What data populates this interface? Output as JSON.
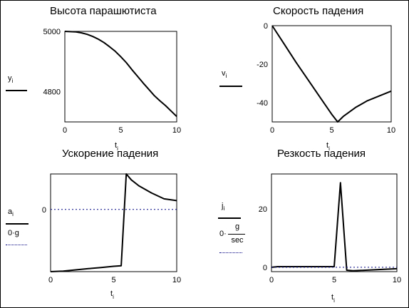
{
  "chart_data": [
    {
      "type": "line",
      "title": "Высота парашютиста",
      "xlabel": "t",
      "xlabel_sub": "i",
      "legend": [
        {
          "label": "y",
          "sub": "i",
          "style": "solid"
        }
      ],
      "xlim": [
        0,
        10
      ],
      "ylim": [
        4700,
        5000
      ],
      "xticks": [
        {
          "v": 0,
          "label": "0"
        },
        {
          "v": 5,
          "label": "5"
        },
        {
          "v": 10,
          "label": "10"
        }
      ],
      "yticks": [
        {
          "v": 5000,
          "label": "5000"
        },
        {
          "v": 4800,
          "label": "4800"
        }
      ],
      "series": [
        {
          "x": [
            0,
            1,
            1.5,
            2,
            2.5,
            3,
            3.5,
            4,
            4.5,
            5,
            5.5,
            6,
            6.5,
            7,
            7.5,
            8,
            8.5,
            9,
            9.5,
            10
          ],
          "y": [
            5000,
            4998,
            4995,
            4990,
            4983,
            4974,
            4963,
            4949,
            4934,
            4916,
            4896,
            4873,
            4851,
            4829,
            4808,
            4787,
            4770,
            4754,
            4736,
            4718
          ]
        }
      ]
    },
    {
      "type": "line",
      "title": "Скорость падения",
      "xlabel": "t",
      "xlabel_sub": "i",
      "legend": [
        {
          "label": "v",
          "sub": "i",
          "style": "solid"
        }
      ],
      "xlim": [
        0,
        10
      ],
      "ylim": [
        -50,
        0
      ],
      "xticks": [
        {
          "v": 0,
          "label": "0"
        },
        {
          "v": 5,
          "label": "5"
        },
        {
          "v": 10,
          "label": "10"
        }
      ],
      "yticks": [
        {
          "v": 0,
          "label": "0"
        },
        {
          "v": -20,
          "label": "-20"
        },
        {
          "v": -40,
          "label": "-40"
        }
      ],
      "series": [
        {
          "x": [
            0,
            1,
            2,
            3,
            4,
            5,
            5.5,
            6,
            7,
            8,
            9,
            10
          ],
          "y": [
            0,
            -9.5,
            -19,
            -28,
            -37,
            -46,
            -50,
            -47,
            -42.5,
            -39,
            -36.5,
            -34
          ]
        }
      ]
    },
    {
      "type": "line",
      "title": "Ускорение падения",
      "xlabel": "t",
      "xlabel_sub": "i",
      "legend": [
        {
          "label": "a",
          "sub": "i",
          "style": "solid"
        },
        {
          "label": "0·g",
          "style": "dotted"
        }
      ],
      "xlim": [
        0,
        10
      ],
      "ylim": [
        -10.5,
        6
      ],
      "xticks": [
        {
          "v": 0,
          "label": "0"
        },
        {
          "v": 5,
          "label": "5"
        },
        {
          "v": 10,
          "label": "10"
        }
      ],
      "yticks": [
        {
          "v": 0,
          "label": "0"
        }
      ],
      "series": [
        {
          "x": [
            0,
            1,
            2,
            3,
            4,
            5,
            5.6,
            6.0,
            6.4,
            7,
            8,
            9,
            10
          ],
          "y": [
            -10.5,
            -10.4,
            -10.2,
            -10,
            -9.8,
            -9.6,
            -9.5,
            6,
            5,
            4,
            2.8,
            1.8,
            1.5
          ]
        },
        {
          "x": [
            0,
            10
          ],
          "y": [
            0,
            0
          ],
          "dotted": true
        }
      ]
    },
    {
      "type": "line",
      "title": "Резкость падения",
      "xlabel": "t",
      "xlabel_sub": "i",
      "legend": [
        {
          "label": "j",
          "sub": "i",
          "style": "solid"
        },
        {
          "label": "0·",
          "frac_num": "g",
          "frac_den": "sec",
          "style": "dotted"
        }
      ],
      "xlim": [
        0,
        10
      ],
      "ylim": [
        -1.5,
        32
      ],
      "xticks": [
        {
          "v": 0,
          "label": "0"
        },
        {
          "v": 5,
          "label": "5"
        },
        {
          "v": 10,
          "label": "10"
        }
      ],
      "yticks": [
        {
          "v": 20,
          "label": "20"
        },
        {
          "v": 0,
          "label": "0"
        }
      ],
      "series": [
        {
          "x": [
            0,
            0.5,
            5,
            5.5,
            6,
            6.5,
            10
          ],
          "y": [
            0,
            0.2,
            0.2,
            29,
            -1,
            -1.2,
            -0.5
          ]
        },
        {
          "x": [
            0,
            10
          ],
          "y": [
            0,
            0
          ],
          "dotted": true
        }
      ]
    }
  ]
}
